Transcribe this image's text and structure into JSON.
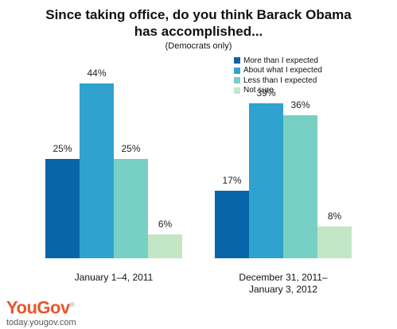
{
  "header": {
    "title_line1": "Since taking office, do you think Barack Obama",
    "title_line2": "has accomplished...",
    "subtitle": "(Democrats only)"
  },
  "legend": [
    {
      "label": "More than I expected",
      "color": "#0866a8"
    },
    {
      "label": "About what I expected",
      "color": "#2fa2cf"
    },
    {
      "label": "Less than I expected",
      "color": "#78cfc4"
    },
    {
      "label": "Not sure",
      "color": "#c3e6c5"
    }
  ],
  "chart_data": {
    "type": "bar",
    "title": "Since taking office, do you think Barack Obama has accomplished...",
    "subtitle": "(Democrats only)",
    "categories": [
      "January 1–4, 2011",
      "December 31, 2011– January 3, 2012"
    ],
    "category_lines": [
      [
        "January 1–4, 2011"
      ],
      [
        "December 31, 2011–",
        "January 3, 2012"
      ]
    ],
    "series": [
      {
        "name": "More than I expected",
        "values": [
          25,
          17
        ],
        "color": "#0866a8"
      },
      {
        "name": "About what I expected",
        "values": [
          44,
          39
        ],
        "color": "#2fa2cf"
      },
      {
        "name": "Less than I expected",
        "values": [
          25,
          36
        ],
        "color": "#78cfc4"
      },
      {
        "name": "Not sure",
        "values": [
          6,
          8
        ],
        "color": "#c3e6c5"
      }
    ],
    "value_suffix": "%",
    "ylim": [
      0,
      50
    ],
    "grid": false,
    "legend_position": "top-right"
  },
  "brand": {
    "logo": "YouGov",
    "registered": "®",
    "url": "today.yougov.com"
  }
}
